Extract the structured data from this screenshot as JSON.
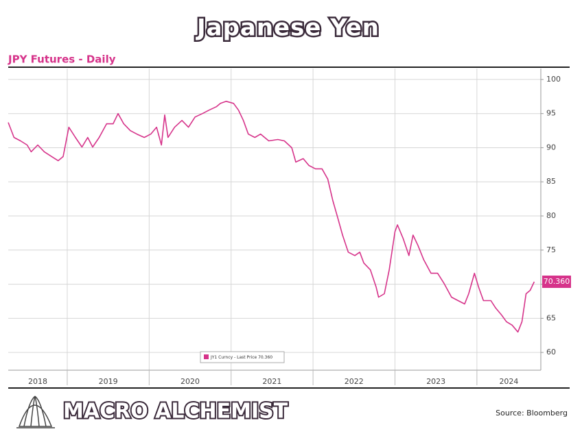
{
  "chart_data": {
    "type": "line",
    "title": "Japanese Yen",
    "subtitle": "JPY Futures - Daily",
    "x": [
      2018.28,
      2018.35,
      2018.43,
      2018.51,
      2018.56,
      2018.64,
      2018.72,
      2018.81,
      2018.89,
      2018.95,
      2019.02,
      2019.1,
      2019.18,
      2019.25,
      2019.31,
      2019.39,
      2019.48,
      2019.56,
      2019.62,
      2019.69,
      2019.77,
      2019.85,
      2019.94,
      2020.02,
      2020.09,
      2020.15,
      2020.19,
      2020.23,
      2020.31,
      2020.4,
      2020.48,
      2020.56,
      2020.65,
      2020.73,
      2020.82,
      2020.87,
      2020.94,
      2021.03,
      2021.09,
      2021.15,
      2021.21,
      2021.29,
      2021.36,
      2021.46,
      2021.57,
      2021.65,
      2021.74,
      2021.79,
      2021.88,
      2021.95,
      2022.03,
      2022.11,
      2022.18,
      2022.24,
      2022.3,
      2022.36,
      2022.43,
      2022.51,
      2022.57,
      2022.62,
      2022.7,
      2022.77,
      2022.8,
      2022.87,
      2022.93,
      2023.0,
      2023.03,
      2023.1,
      2023.17,
      2023.22,
      2023.28,
      2023.35,
      2023.44,
      2023.52,
      2023.6,
      2023.69,
      2023.77,
      2023.85,
      2023.9,
      2023.97,
      2024.02,
      2024.08,
      2024.17,
      2024.23,
      2024.3,
      2024.36,
      2024.43,
      2024.5,
      2024.55,
      2024.6,
      2024.65,
      2024.7
    ],
    "series": [
      {
        "name": "JY1 Curncy - Last Price 70.360",
        "color": "#d6338a",
        "values": [
          93.7,
          91.5,
          91,
          90.4,
          89.4,
          90.4,
          89.4,
          88.7,
          88.1,
          88.7,
          93,
          91.5,
          90.1,
          91.5,
          90.1,
          91.5,
          93.5,
          93.5,
          95,
          93.5,
          92.5,
          92,
          91.5,
          92,
          93,
          90.4,
          94.8,
          91.5,
          93,
          94,
          93,
          94.5,
          95,
          95.5,
          96,
          96.5,
          96.8,
          96.5,
          95.5,
          94,
          92,
          91.5,
          92,
          91,
          91.2,
          91,
          90,
          87.9,
          88.4,
          87.4,
          86.9,
          86.9,
          85.4,
          82.3,
          79.8,
          77.2,
          74.7,
          74.2,
          74.7,
          73.1,
          72.1,
          69.6,
          68.1,
          68.6,
          72.1,
          77.7,
          78.7,
          76.7,
          74.2,
          77.2,
          75.7,
          73.6,
          71.6,
          71.6,
          70.1,
          68.1,
          67.6,
          67.1,
          68.6,
          71.6,
          69.6,
          67.6,
          67.6,
          66.5,
          65.5,
          64.5,
          64,
          63,
          64.5,
          68.6,
          69.1,
          70.36
        ]
      }
    ],
    "last_price_label": "70.360",
    "xlim": [
      2018.28,
      2024.78
    ],
    "xticks": [
      2019,
      2020,
      2021,
      2022,
      2023,
      2024
    ],
    "year_labels": [
      "2018",
      "2019",
      "2020",
      "2021",
      "2022",
      "2023",
      "2024"
    ],
    "ylim": [
      57.4,
      101.6
    ],
    "yticks": [
      60,
      65,
      70,
      75,
      80,
      85,
      90,
      95,
      100
    ],
    "grid": true,
    "brand": "MACRO ALCHEMIST",
    "source": "Source: Bloomberg"
  }
}
